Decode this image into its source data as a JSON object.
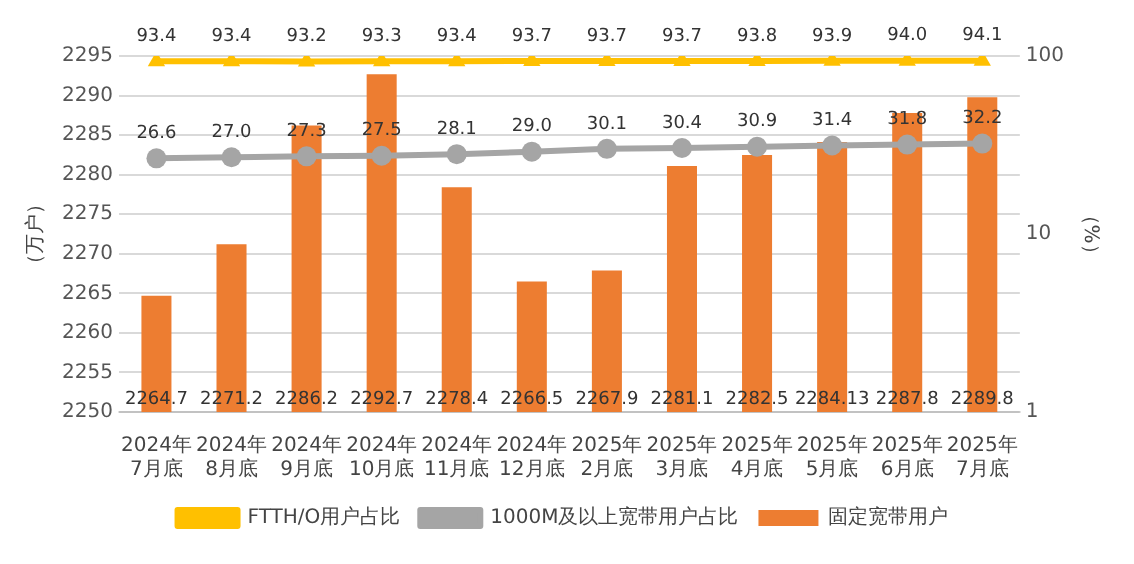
{
  "chart_data": {
    "type": "bar",
    "ylabel": "（万户）",
    "y2label": "（%）",
    "categories": [
      "2024年 7月底",
      "2024年 8月底",
      "2024年 9月底",
      "2024年 10月底",
      "2024年 11月底",
      "2024年 12月底",
      "2025年 2月底",
      "2025年 3月底",
      "2025年 4月底",
      "2025年 5月底",
      "2025年 6月底",
      "2025年 7月底"
    ],
    "series": [
      {
        "name": "固定宽带用户",
        "color": "#ed7d31",
        "values": [
          2264.7,
          2271.2,
          2286.2,
          2292.7,
          2278.4,
          2266.5,
          2267.9,
          2281.1,
          2282.5,
          2284.13,
          2287.8,
          2289.8
        ]
      },
      {
        "name": "FTTH/O用户占比",
        "type": "line",
        "axis": "y2",
        "color": "#ffc000",
        "marker": "triangle",
        "values": [
          93.4,
          93.4,
          93.2,
          93.3,
          93.4,
          93.7,
          93.7,
          93.7,
          93.8,
          93.9,
          94.0,
          94.1
        ],
        "value_labels": [
          "93.4",
          "93.4",
          "93.2",
          "93.3",
          "93.4",
          "93.7",
          "93.7",
          "93.7",
          "93.8",
          "93.9",
          "94.0",
          "94.1"
        ]
      },
      {
        "name": "1000M及以上宽带用户占比",
        "type": "line",
        "axis": "y2",
        "color": "#a5a5a5",
        "marker": "circle",
        "values": [
          26.6,
          27.0,
          27.3,
          27.5,
          28.1,
          29.0,
          30.1,
          30.4,
          30.9,
          31.4,
          31.8,
          32.2
        ],
        "value_labels": [
          "26.6",
          "27.0",
          "27.3",
          "27.5",
          "28.1",
          "29.0",
          "30.1",
          "30.4",
          "30.9",
          "31.4",
          "31.8",
          "32.2"
        ]
      }
    ],
    "ylim": [
      2250,
      2295
    ],
    "yticks": [
      2250,
      2255,
      2260,
      2265,
      2270,
      2275,
      2280,
      2285,
      2290,
      2295
    ],
    "y2lim": [
      1,
      100
    ],
    "y2ticks": [
      1,
      10,
      100
    ],
    "log": "y2",
    "grid": "y",
    "legend": "bottom",
    "data_labels": true
  }
}
